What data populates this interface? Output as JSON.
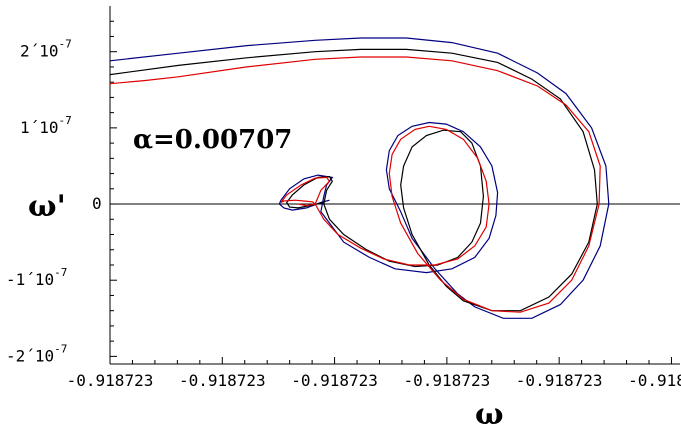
{
  "chart_data": {
    "type": "line",
    "title": "",
    "xlabel": "ω",
    "ylabel": "ω'",
    "annotation": "α=0.00707",
    "x_tick_labels": [
      "-0.918723",
      "-0.918723",
      "-0.918723",
      "-0.918723",
      "-0.918723",
      "-0.918723"
    ],
    "y_tick_labels": [
      {
        "mantissa": "2",
        "sep": "´",
        "base": "10",
        "exp": "-7",
        "value": 2e-07
      },
      {
        "mantissa": "1",
        "sep": "´",
        "base": "10",
        "exp": "-7",
        "value": 1e-07
      },
      {
        "mantissa": "0",
        "sep": "",
        "base": "",
        "exp": "",
        "value": 0
      },
      {
        "mantissa": "-1",
        "sep": "´",
        "base": "10",
        "exp": "-7",
        "value": -1e-07
      },
      {
        "mantissa": "-2",
        "sep": "´",
        "base": "10",
        "exp": "-7",
        "value": -2e-07
      }
    ],
    "xlim": [
      0.0,
      1.0
    ],
    "ylim": [
      -2.1e-07,
      2.6e-07
    ],
    "grid": false,
    "series": [
      {
        "color": "#000080",
        "x": [
          0.0,
          0.12,
          0.24,
          0.36,
          0.44,
          0.52,
          0.6,
          0.68,
          0.75,
          0.8,
          0.845,
          0.87,
          0.875,
          0.86,
          0.83,
          0.79,
          0.74,
          0.69,
          0.64,
          0.61,
          0.57,
          0.53,
          0.51,
          0.49,
          0.485,
          0.49,
          0.505,
          0.53,
          0.56,
          0.59,
          0.62,
          0.65,
          0.67,
          0.68,
          0.677,
          0.665,
          0.64,
          0.6,
          0.555,
          0.5,
          0.455,
          0.41,
          0.385,
          0.37,
          0.375,
          0.38,
          0.39,
          0.365,
          0.34,
          0.315,
          0.3,
          0.297,
          0.305,
          0.32,
          0.345,
          0.37,
          0.385
        ],
        "y": [
          1.88e-07,
          1.98e-07,
          2.08e-07,
          2.15e-07,
          2.18e-07,
          2.18e-07,
          2.12e-07,
          1.98e-07,
          1.72e-07,
          1.45e-07,
          1e-07,
          5e-08,
          0.0,
          -5.5e-08,
          -1e-07,
          -1.32e-07,
          -1.5e-07,
          -1.5e-07,
          -1.35e-07,
          -1.18e-07,
          -8.5e-08,
          -4.5e-08,
          -1e-08,
          2e-08,
          4.5e-08,
          7e-08,
          9e-08,
          1.02e-07,
          1.07e-07,
          1.05e-07,
          9.5e-08,
          7.5e-08,
          5e-08,
          1.5e-08,
          -1.5e-08,
          -4.5e-08,
          -7e-08,
          -8.5e-08,
          -9e-08,
          -8.5e-08,
          -7e-08,
          -5e-08,
          -2.5e-08,
          -1e-08,
          1e-08,
          2.5e-08,
          3.5e-08,
          3.8e-08,
          3.3e-08,
          2e-08,
          5e-09,
          0.0,
          -5e-09,
          -8e-09,
          -5e-09,
          2e-09,
          5e-09
        ]
      },
      {
        "color": "#000000",
        "x": [
          0.0,
          0.12,
          0.24,
          0.36,
          0.44,
          0.52,
          0.6,
          0.68,
          0.74,
          0.79,
          0.83,
          0.85,
          0.855,
          0.84,
          0.81,
          0.77,
          0.72,
          0.67,
          0.62,
          0.59,
          0.56,
          0.53,
          0.515,
          0.51,
          0.515,
          0.53,
          0.555,
          0.585,
          0.615,
          0.635,
          0.65,
          0.655,
          0.65,
          0.635,
          0.61,
          0.575,
          0.535,
          0.49,
          0.45,
          0.41,
          0.385,
          0.375,
          0.38,
          0.39,
          0.385,
          0.365,
          0.34,
          0.32,
          0.31,
          0.315,
          0.33,
          0.35,
          0.375
        ],
        "y": [
          1.7e-07,
          1.82e-07,
          1.92e-07,
          2e-07,
          2.03e-07,
          2.03e-07,
          1.98e-07,
          1.86e-07,
          1.64e-07,
          1.38e-07,
          9.5e-08,
          4.5e-08,
          0.0,
          -5e-08,
          -9.2e-08,
          -1.22e-07,
          -1.4e-07,
          -1.4e-07,
          -1.27e-07,
          -1.08e-07,
          -8e-08,
          -4e-08,
          -5e-09,
          2.5e-08,
          5e-08,
          7.5e-08,
          9e-08,
          9.7e-08,
          9.5e-08,
          8e-08,
          5e-08,
          1e-08,
          -2.5e-08,
          -5e-08,
          -7e-08,
          -8e-08,
          -8.2e-08,
          -7.5e-08,
          -6e-08,
          -4e-08,
          -2e-08,
          0.0,
          1.8e-08,
          3e-08,
          3.6e-08,
          3.5e-08,
          2.5e-08,
          1.2e-08,
          2e-09,
          -4e-09,
          -5e-09,
          -2e-09,
          2e-09
        ]
      },
      {
        "color": "#e00000",
        "x": [
          0.0,
          0.06,
          0.12,
          0.24,
          0.36,
          0.44,
          0.52,
          0.6,
          0.68,
          0.75,
          0.8,
          0.84,
          0.86,
          0.858,
          0.84,
          0.81,
          0.77,
          0.72,
          0.67,
          0.62,
          0.58,
          0.54,
          0.51,
          0.495,
          0.49,
          0.495,
          0.51,
          0.535,
          0.56,
          0.59,
          0.62,
          0.645,
          0.66,
          0.665,
          0.66,
          0.64,
          0.61,
          0.57,
          0.525,
          0.48,
          0.44,
          0.4,
          0.375,
          0.36,
          0.37,
          0.385,
          0.38,
          0.36,
          0.335,
          0.31,
          0.3,
          0.305,
          0.325,
          0.34,
          0.355,
          0.36,
          0.345,
          0.33
        ],
        "y": [
          1.58e-07,
          1.62e-07,
          1.67e-07,
          1.8e-07,
          1.9e-07,
          1.93e-07,
          1.93e-07,
          1.88e-07,
          1.75e-07,
          1.55e-07,
          1.3e-07,
          9.5e-08,
          5e-08,
          0.0,
          -5.5e-08,
          -1e-07,
          -1.3e-07,
          -1.42e-07,
          -1.4e-07,
          -1.25e-07,
          -1e-07,
          -6.5e-08,
          -2.5e-08,
          1e-08,
          4e-08,
          6.5e-08,
          8.5e-08,
          9.8e-08,
          1.02e-07,
          9.8e-08,
          8.5e-08,
          6e-08,
          3e-08,
          0.0,
          -3e-08,
          -5.5e-08,
          -7.2e-08,
          -8e-08,
          -8e-08,
          -7.2e-08,
          -5.8e-08,
          -4e-08,
          -2e-08,
          0.0,
          1.8e-08,
          3e-08,
          3.5e-08,
          3.4e-08,
          2.5e-08,
          1.2e-08,
          2e-09,
          4e-09,
          5e-09,
          4e-09,
          3e-09,
          0.0,
          -2e-09,
          0.0
        ]
      }
    ]
  }
}
